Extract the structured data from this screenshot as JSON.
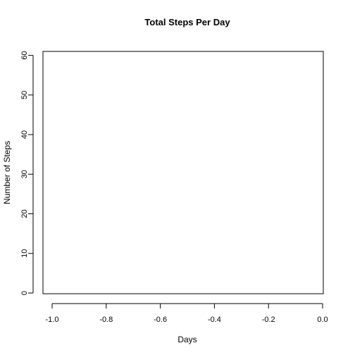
{
  "chart_data": {
    "type": "bar",
    "title": "Total Steps Per Day",
    "xlabel": "Days",
    "ylabel": "Number of Steps",
    "xlim": [
      -1.0,
      0.0
    ],
    "ylim": [
      0,
      61
    ],
    "x_ticks": [
      -1.0,
      -0.8,
      -0.6,
      -0.4,
      -0.2,
      0.0
    ],
    "x_tick_labels": [
      "-1.0",
      "-0.8",
      "-0.6",
      "-0.4",
      "-0.2",
      "0.0"
    ],
    "y_ticks": [
      0,
      10,
      20,
      30,
      40,
      50,
      60
    ],
    "y_tick_labels": [
      "0",
      "10",
      "20",
      "30",
      "40",
      "50",
      "60"
    ],
    "categories": [],
    "values": [],
    "grid": false,
    "legend": "none"
  }
}
